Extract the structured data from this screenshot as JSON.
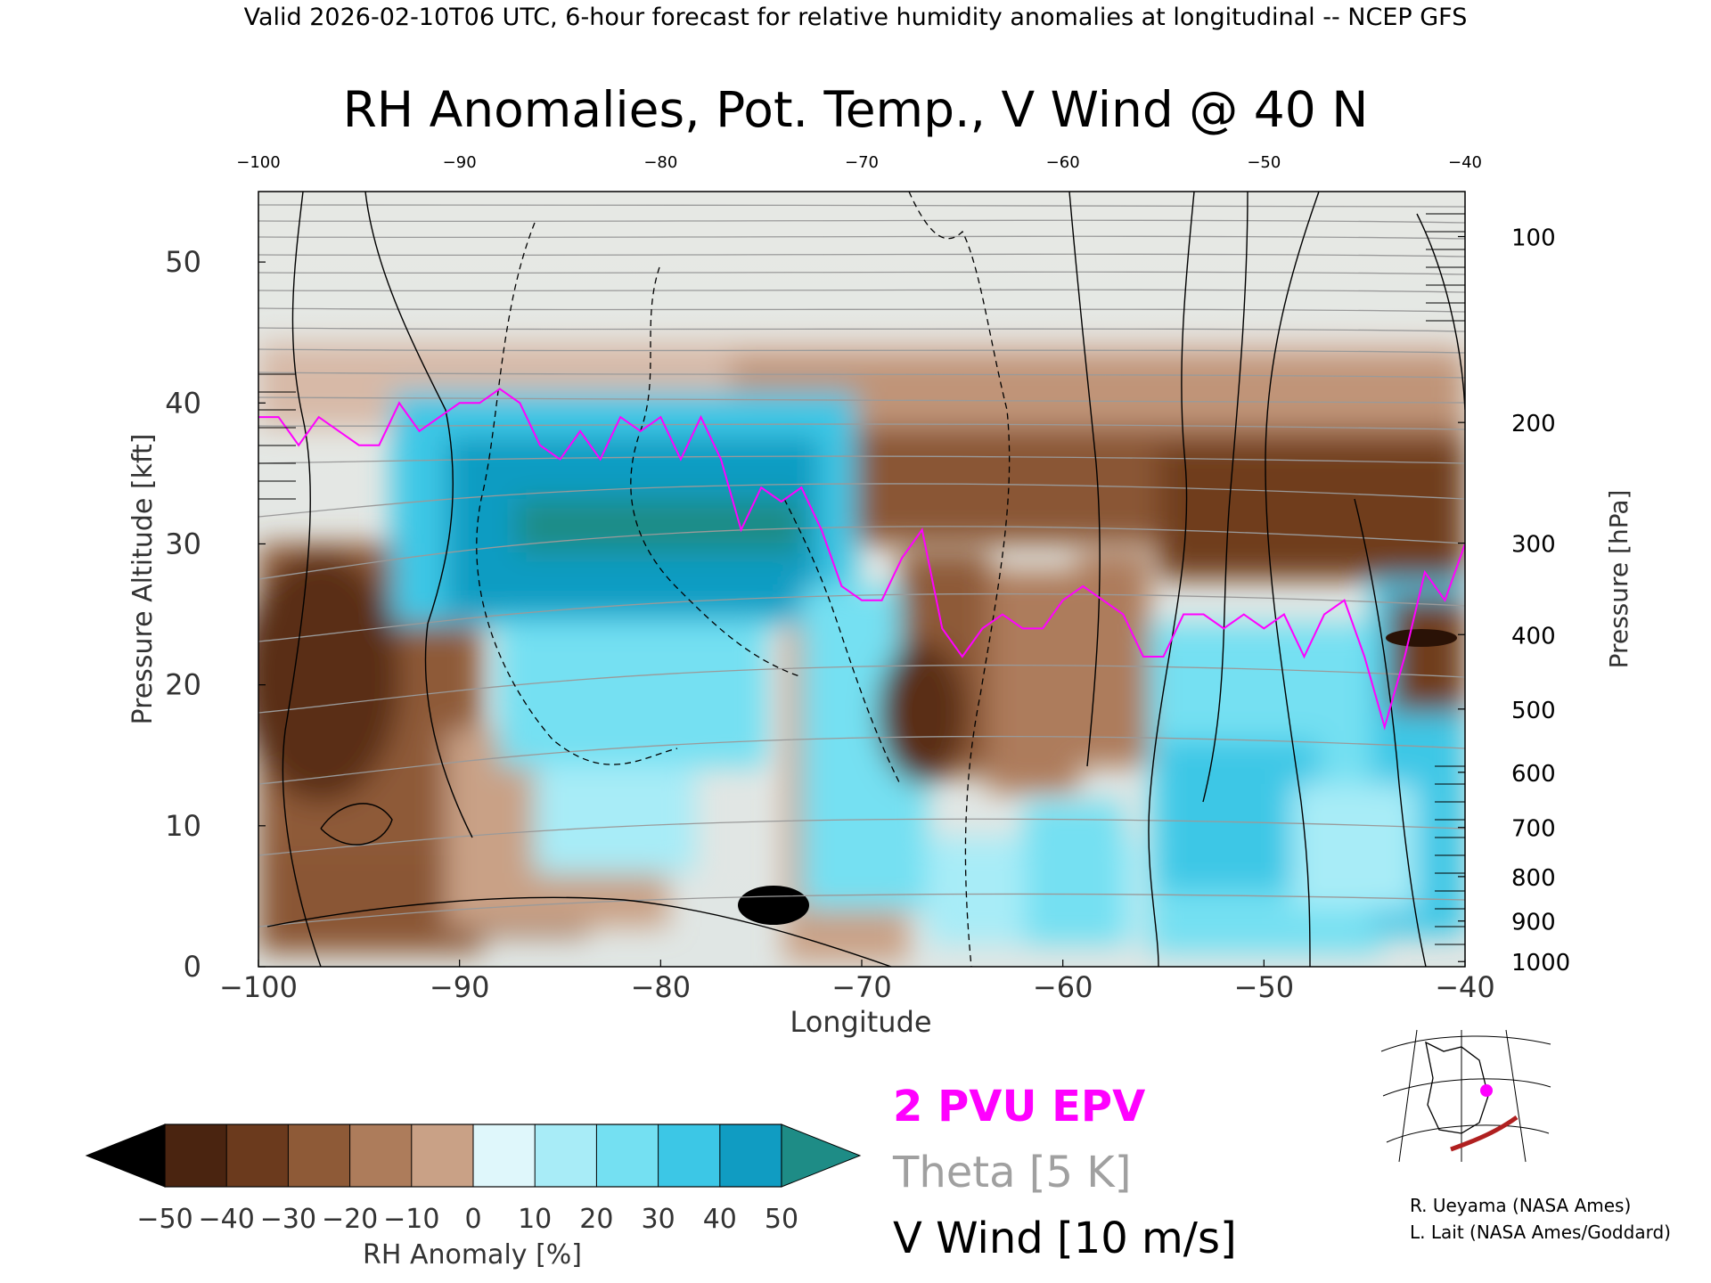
{
  "header": "Valid 2026-02-10T06 UTC, 6-hour forecast for relative humidity anomalies at longitudinal -- NCEP GFS",
  "chart_data": {
    "type": "heatmap",
    "title": "RH Anomalies, Pot. Temp., V Wind @ 40 N",
    "xlabel": "Longitude",
    "ylabel": "Pressure Altitude [kft]",
    "y2label": "Pressure [hPa]",
    "xlim": [
      -100,
      -40
    ],
    "ylim": [
      0,
      55
    ],
    "x_ticks": [
      "−100",
      "−90",
      "−80",
      "−70",
      "−60",
      "−50",
      "−40"
    ],
    "x_tick_values": [
      -100,
      -90,
      -80,
      -70,
      -60,
      -50,
      -40
    ],
    "top_ticks": [
      "−100",
      "−90",
      "−80",
      "−70",
      "−60",
      "−50",
      "−40"
    ],
    "y_ticks": [
      "0",
      "10",
      "20",
      "30",
      "40",
      "50"
    ],
    "y_tick_values": [
      0,
      10,
      20,
      30,
      40,
      50
    ],
    "pressure_ticks": [
      "100",
      "200",
      "300",
      "400",
      "500",
      "600",
      "700",
      "800",
      "900",
      "1000"
    ],
    "pressure_tick_values": [
      100,
      200,
      300,
      400,
      500,
      600,
      700,
      800,
      900,
      1000
    ],
    "colorbar": {
      "label": "RH Anomaly [%]",
      "tick_labels": [
        "−50",
        "−40",
        "−30",
        "−20",
        "−10",
        "0",
        "10",
        "20",
        "30",
        "40",
        "50"
      ],
      "colors": [
        "#000000",
        "#4a2410",
        "#6b3a1d",
        "#8e5a37",
        "#ad7c5b",
        "#c9a186",
        "#ecd8cc",
        "#dff7fb",
        "#a8ecf7",
        "#74e0f2",
        "#3cc7e6",
        "#109cc2",
        "#1e8c86"
      ]
    },
    "legend": [
      {
        "label": "2 PVU EPV",
        "color": "#ff00ff"
      },
      {
        "label": "Theta [5 K]",
        "color": "#a0a0a0"
      },
      {
        "label": "V Wind [10 m/s]",
        "color": "#000000"
      }
    ],
    "series": [
      {
        "name": "2 PVU EPV",
        "x": [
          -100,
          -99,
          -98,
          -97,
          -96,
          -95,
          -94,
          -93,
          -92,
          -91,
          -90,
          -89,
          -88,
          -87,
          -86,
          -85,
          -84,
          -83,
          -82,
          -81,
          -80,
          -79,
          -78,
          -77,
          -76,
          -75,
          -74,
          -73,
          -72,
          -71,
          -70,
          -69,
          -68,
          -67,
          -66,
          -65,
          -64,
          -63,
          -62,
          -61,
          -60,
          -59,
          -58,
          -57,
          -56,
          -55,
          -54,
          -53,
          -52,
          -51,
          -50,
          -49,
          -48,
          -47,
          -46,
          -45,
          -44,
          -43,
          -42,
          -41,
          -40
        ],
        "y": [
          39,
          39,
          37,
          39,
          38,
          37,
          37,
          40,
          38,
          39,
          40,
          40,
          41,
          40,
          37,
          36,
          38,
          36,
          39,
          38,
          39,
          36,
          39,
          36,
          31,
          34,
          33,
          34,
          31,
          27,
          26,
          26,
          29,
          31,
          24,
          22,
          24,
          25,
          24,
          24,
          26,
          27,
          26,
          25,
          22,
          22,
          25,
          25,
          24,
          25,
          24,
          25,
          22,
          25,
          26,
          22,
          17,
          22,
          28,
          26,
          30
        ]
      },
      {
        "name": "Theta [5 K]",
        "levels_K": [
          280,
          290,
          300,
          310,
          320,
          330,
          340,
          350,
          360,
          370,
          380,
          390,
          400,
          410,
          420
        ]
      },
      {
        "name": "V Wind [10 m/s]",
        "levels_ms": [
          -30,
          -20,
          -10,
          0,
          10,
          20,
          30
        ]
      }
    ]
  },
  "inset_map": {
    "label": "40 N cross-section location map"
  },
  "credits": [
    "R. Ueyama (NASA Ames)",
    "L. Lait (NASA Ames/Goddard)"
  ]
}
